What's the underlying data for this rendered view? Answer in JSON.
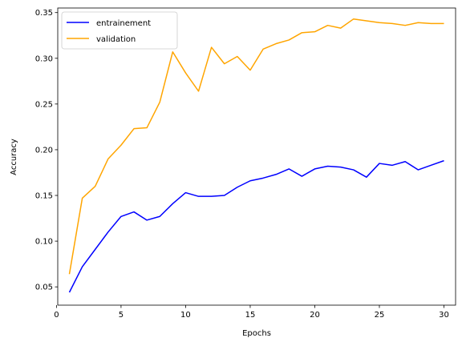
{
  "chart_data": {
    "type": "line",
    "xlabel": "Epochs",
    "ylabel": "Accuracy",
    "xlim": [
      0.1,
      30.9
    ],
    "ylim": [
      0.03,
      0.355
    ],
    "xticks": [
      0,
      5,
      10,
      15,
      20,
      25,
      30
    ],
    "yticks": [
      0.05,
      0.1,
      0.15,
      0.2,
      0.25,
      0.3,
      0.35
    ],
    "ytick_labels": [
      "0.05",
      "0.10",
      "0.15",
      "0.20",
      "0.25",
      "0.30",
      "0.35"
    ],
    "grid": false,
    "legend_position": "top-left",
    "x": [
      1,
      2,
      3,
      4,
      5,
      6,
      7,
      8,
      9,
      10,
      11,
      12,
      13,
      14,
      15,
      16,
      17,
      18,
      19,
      20,
      21,
      22,
      23,
      24,
      25,
      26,
      27,
      28,
      29,
      30
    ],
    "series": [
      {
        "name": "entrainement",
        "color": "#0000ff",
        "values": [
          0.044,
          0.072,
          0.091,
          0.11,
          0.127,
          0.132,
          0.123,
          0.127,
          0.141,
          0.153,
          0.149,
          0.149,
          0.15,
          0.159,
          0.166,
          0.169,
          0.173,
          0.179,
          0.171,
          0.179,
          0.182,
          0.181,
          0.178,
          0.17,
          0.185,
          0.183,
          0.187,
          0.178,
          0.183,
          0.188
        ]
      },
      {
        "name": "validation",
        "color": "#ffa500",
        "values": [
          0.064,
          0.147,
          0.16,
          0.19,
          0.205,
          0.223,
          0.224,
          0.252,
          0.307,
          0.284,
          0.264,
          0.312,
          0.294,
          0.302,
          0.287,
          0.31,
          0.316,
          0.32,
          0.328,
          0.329,
          0.336,
          0.333,
          0.343,
          0.341,
          0.339,
          0.338,
          0.336,
          0.339,
          0.338,
          0.338
        ]
      }
    ]
  }
}
